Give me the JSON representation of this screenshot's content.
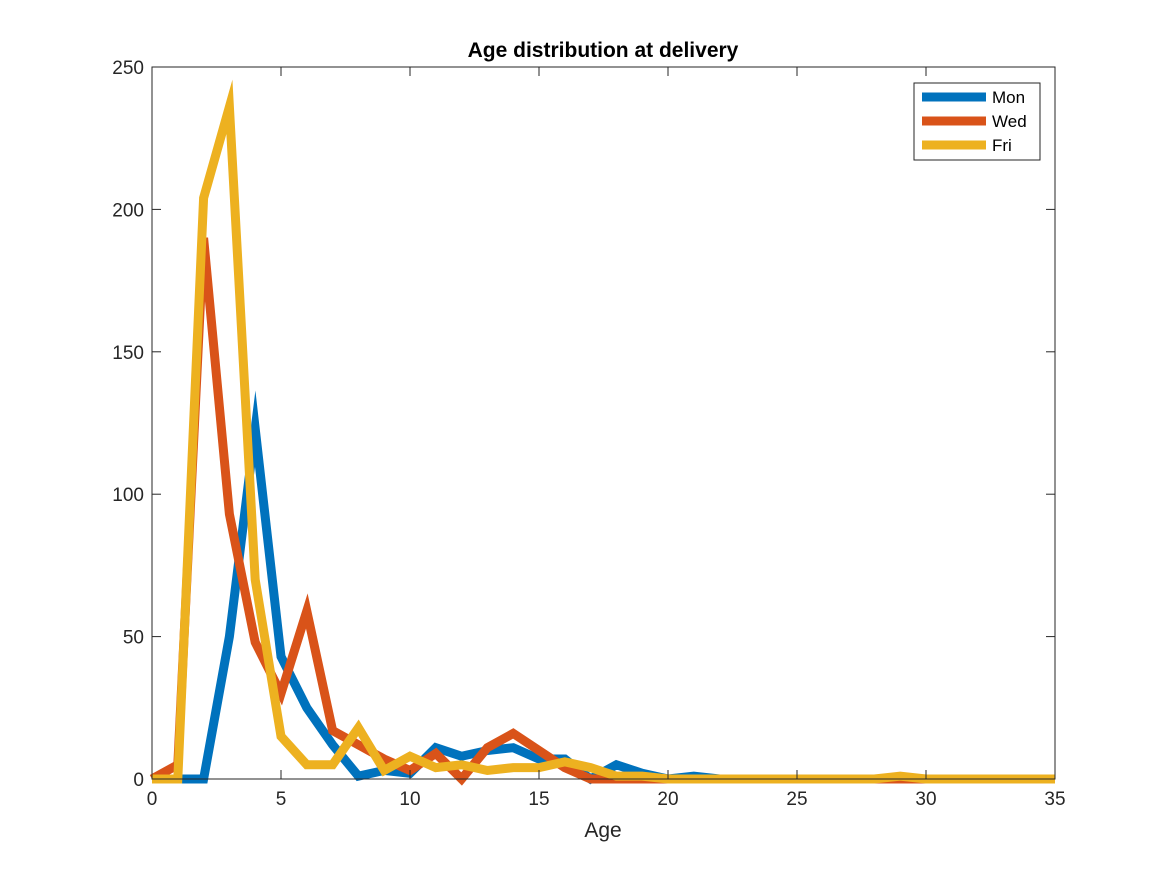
{
  "chart_data": {
    "type": "line",
    "title": "Age distribution at delivery",
    "xlabel": "Age",
    "ylabel": "",
    "xlim": [
      0,
      35
    ],
    "ylim": [
      0,
      250
    ],
    "xticks": [
      0,
      5,
      10,
      15,
      20,
      25,
      30,
      35
    ],
    "yticks": [
      0,
      50,
      100,
      150,
      200,
      250
    ],
    "grid": false,
    "legend_position": "top-right",
    "x": [
      0,
      1,
      2,
      3,
      4,
      5,
      6,
      7,
      8,
      9,
      10,
      11,
      12,
      13,
      14,
      15,
      16,
      17,
      18,
      19,
      20,
      21,
      22,
      23,
      24,
      25,
      26,
      27,
      28,
      29,
      30,
      31,
      32,
      33,
      34,
      35
    ],
    "series": [
      {
        "name": "Mon",
        "color": "#0072BD",
        "values": [
          0,
          0,
          0,
          50,
          123,
          43,
          25,
          12,
          1,
          3,
          2,
          11,
          8,
          10,
          11,
          7,
          7,
          0,
          5,
          2,
          0,
          1,
          0,
          0,
          0,
          0,
          0,
          0,
          0,
          0,
          0,
          0,
          0,
          0,
          0,
          0
        ]
      },
      {
        "name": "Wed",
        "color": "#D95319",
        "values": [
          0,
          5,
          190,
          93,
          48,
          30,
          59,
          17,
          12,
          7,
          3,
          9,
          0,
          11,
          16,
          10,
          4,
          0,
          0,
          0,
          0,
          0,
          0,
          0,
          0,
          0,
          0,
          0,
          0,
          0,
          0,
          0,
          0,
          0,
          0,
          0
        ]
      },
      {
        "name": "Fri",
        "color": "#EDB120",
        "values": [
          0,
          0,
          204,
          236,
          70,
          15,
          5,
          5,
          18,
          3,
          8,
          4,
          5,
          3,
          4,
          4,
          6,
          4,
          1,
          1,
          0,
          0,
          0,
          0,
          0,
          0,
          0,
          0,
          0,
          1,
          0,
          0,
          0,
          0,
          0,
          0
        ]
      }
    ]
  }
}
